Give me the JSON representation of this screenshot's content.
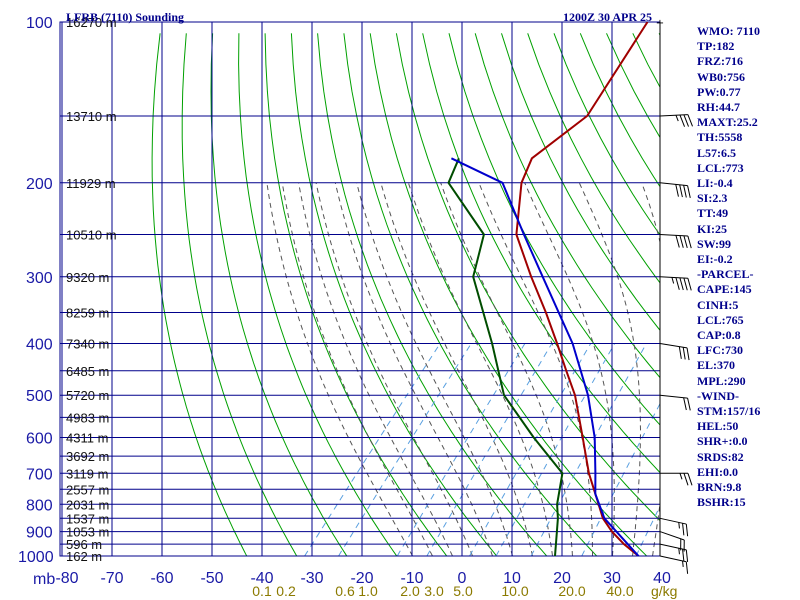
{
  "title_left": "LFRB (7110) Sounding",
  "title_right": "1200Z 30 APR 25",
  "mb_label": "mb",
  "gkg_label": "g/kg",
  "indices": [
    "WMO: 7110",
    "TP:182",
    "FRZ:716",
    "WB0:756",
    "PW:0.77",
    "RH:44.7",
    "MAXT:25.2",
    "TH:5558",
    "L57:6.5",
    "LCL:773",
    "LI:-0.4",
    "SI:2.3",
    "TT:49",
    "KI:25",
    "SW:99",
    "EI:-0.2",
    "-PARCEL-",
    "CAPE:145",
    "CINH:5",
    "LCL:765",
    "CAP:0.8",
    "LFC:730",
    "EL:370",
    "MPL:290",
    "-WIND-",
    "STM:157/16",
    "HEL:50",
    "SHR+:0.0",
    "SRDS:82",
    "EHI:0.0",
    "BRN:9.8",
    "BSHR:15"
  ],
  "colors": {
    "grid": "#00008b",
    "dry_adiabat": "#00a000",
    "moist_adiabat": "#555555",
    "mixing_ratio": "#5aa0e0",
    "temperature": "#a00000",
    "dewpoint": "#004d00",
    "parcel": "#0000cc",
    "wind": "#000000"
  },
  "chart_data": {
    "type": "skew-t",
    "pressure_levels_mb": [
      100,
      200,
      300,
      400,
      500,
      600,
      700,
      800,
      900,
      1000
    ],
    "pressure_labels": [
      "100",
      "200",
      "300",
      "400",
      "500",
      "600",
      "700",
      "800",
      "900",
      "1000"
    ],
    "height_labels": [
      {
        "p": 100,
        "label": "16270 m"
      },
      {
        "p": 150,
        "label": "13710 m"
      },
      {
        "p": 200,
        "label": "11929 m"
      },
      {
        "p": 250,
        "label": "10510 m"
      },
      {
        "p": 300,
        "label": "9320 m"
      },
      {
        "p": 350,
        "label": "8259 m"
      },
      {
        "p": 400,
        "label": "7340 m"
      },
      {
        "p": 450,
        "label": "6485 m"
      },
      {
        "p": 500,
        "label": "5720 m"
      },
      {
        "p": 550,
        "label": "4983 m"
      },
      {
        "p": 600,
        "label": "4311 m"
      },
      {
        "p": 650,
        "label": "3692 m"
      },
      {
        "p": 700,
        "label": "3119 m"
      },
      {
        "p": 750,
        "label": "2557 m"
      },
      {
        "p": 800,
        "label": "2031 m"
      },
      {
        "p": 850,
        "label": "1537 m"
      },
      {
        "p": 900,
        "label": "1053 m"
      },
      {
        "p": 950,
        "label": "596 m"
      },
      {
        "p": 1000,
        "label": "162 m"
      }
    ],
    "temperature_ticks": [
      -80,
      -70,
      -60,
      -50,
      -40,
      -30,
      -20,
      -10,
      0,
      10,
      20,
      30,
      40
    ],
    "temperature_tick_labels": [
      "-80",
      "-70",
      "-60",
      "-50",
      "-40",
      "-30",
      "-20",
      "-10",
      "0",
      "10",
      "20",
      "30",
      "40"
    ],
    "mixing_ratio_labels": [
      "0.1",
      "0.2",
      "0.6",
      "1.0",
      "2.0",
      "3.0",
      "5.0",
      "10.0",
      "20.0",
      "40.0"
    ],
    "mixing_ratio_values": [
      0.1,
      0.2,
      0.6,
      1.0,
      2.0,
      3.0,
      5.0,
      10.0,
      20.0,
      40.0
    ],
    "series": [
      {
        "key": "temperature",
        "points": [
          [
            1000,
            25.2
          ],
          [
            950,
            20.3
          ],
          [
            900,
            15.8
          ],
          [
            850,
            11.8
          ],
          [
            800,
            8.6
          ],
          [
            700,
            1.5
          ],
          [
            600,
            -5.7
          ],
          [
            500,
            -14.3
          ],
          [
            450,
            -20.1
          ],
          [
            400,
            -26.5
          ],
          [
            350,
            -33.9
          ],
          [
            300,
            -42.8
          ],
          [
            250,
            -52.8
          ],
          [
            200,
            -60.4
          ],
          [
            180,
            -62.4
          ],
          [
            150,
            -58.4
          ],
          [
            100,
            -62
          ]
        ]
      },
      {
        "key": "dewpoint",
        "points": [
          [
            1000,
            8.5
          ],
          [
            900,
            4.8
          ],
          [
            850,
            2.8
          ],
          [
            800,
            0.3
          ],
          [
            700,
            -3.8
          ],
          [
            600,
            -15.5
          ],
          [
            500,
            -28.5
          ],
          [
            400,
            -39.5
          ],
          [
            300,
            -54.4
          ],
          [
            250,
            -59.3
          ],
          [
            200,
            -75
          ],
          [
            180,
            -77
          ]
        ]
      },
      {
        "key": "parcel",
        "points": [
          [
            1000,
            25.2
          ],
          [
            850,
            12.1
          ],
          [
            765,
            6.2
          ],
          [
            700,
            2.8
          ],
          [
            600,
            -3.3
          ],
          [
            500,
            -11.7
          ],
          [
            400,
            -23.4
          ],
          [
            300,
            -40.5
          ],
          [
            250,
            -51.3
          ],
          [
            200,
            -64.2
          ],
          [
            180,
            -78.5
          ]
        ]
      }
    ],
    "wind_barbs": [
      {
        "p": 1000,
        "dir": 250,
        "speed": 5
      },
      {
        "p": 950,
        "dir": 250,
        "speed": 15
      },
      {
        "p": 900,
        "dir": 240,
        "speed": 20
      },
      {
        "p": 850,
        "dir": 250,
        "speed": 15
      },
      {
        "p": 700,
        "dir": 270,
        "speed": 15
      },
      {
        "p": 500,
        "dir": 260,
        "speed": 20
      },
      {
        "p": 400,
        "dir": 255,
        "speed": 30
      },
      {
        "p": 300,
        "dir": 265,
        "speed": 35
      },
      {
        "p": 250,
        "dir": 265,
        "speed": 40
      },
      {
        "p": 200,
        "dir": 260,
        "speed": 40
      },
      {
        "p": 150,
        "dir": 275,
        "speed": 25
      }
    ]
  }
}
